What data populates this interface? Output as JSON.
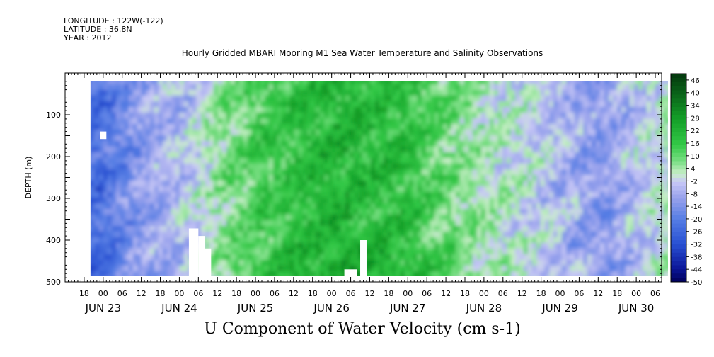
{
  "header": {
    "longitude": "LONGITUDE : 122W(-122)",
    "latitude": "LATITUDE : 36.8N",
    "year": "YEAR : 2012",
    "title": "Hourly Gridded MBARI Mooring M1 Sea Water Temperature and Salinity Observations"
  },
  "chart_data": {
    "type": "heatmap",
    "title": "U Component of Water Velocity (cm s-1)",
    "ylabel": "DEPTH (m)",
    "xlabel": "",
    "y_inverted": true,
    "ylim": [
      0,
      500
    ],
    "y_ticks": [
      100,
      200,
      300,
      400,
      500
    ],
    "x_hour_range": [
      12,
      200
    ],
    "x_hour_ticks": [
      {
        "h": 18,
        "label": "18"
      },
      {
        "h": 24,
        "label": "00"
      },
      {
        "h": 30,
        "label": "06"
      },
      {
        "h": 36,
        "label": "12"
      },
      {
        "h": 42,
        "label": "18"
      },
      {
        "h": 48,
        "label": "00"
      },
      {
        "h": 54,
        "label": "06"
      },
      {
        "h": 60,
        "label": "12"
      },
      {
        "h": 66,
        "label": "18"
      },
      {
        "h": 72,
        "label": "00"
      },
      {
        "h": 78,
        "label": "06"
      },
      {
        "h": 84,
        "label": "12"
      },
      {
        "h": 90,
        "label": "18"
      },
      {
        "h": 96,
        "label": "00"
      },
      {
        "h": 102,
        "label": "06"
      },
      {
        "h": 108,
        "label": "12"
      },
      {
        "h": 114,
        "label": "18"
      },
      {
        "h": 120,
        "label": "00"
      },
      {
        "h": 126,
        "label": "06"
      },
      {
        "h": 132,
        "label": "12"
      },
      {
        "h": 138,
        "label": "18"
      },
      {
        "h": 144,
        "label": "00"
      },
      {
        "h": 150,
        "label": "06"
      },
      {
        "h": 156,
        "label": "12"
      },
      {
        "h": 162,
        "label": "18"
      },
      {
        "h": 168,
        "label": "00"
      },
      {
        "h": 174,
        "label": "06"
      },
      {
        "h": 180,
        "label": "12"
      },
      {
        "h": 186,
        "label": "18"
      },
      {
        "h": 192,
        "label": "00"
      },
      {
        "h": 198,
        "label": "06"
      }
    ],
    "day_labels": [
      {
        "h": 24,
        "label": "JUN 23"
      },
      {
        "h": 48,
        "label": "JUN 24"
      },
      {
        "h": 72,
        "label": "JUN 25"
      },
      {
        "h": 96,
        "label": "JUN 26"
      },
      {
        "h": 120,
        "label": "JUN 27"
      },
      {
        "h": 144,
        "label": "JUN 28"
      },
      {
        "h": 168,
        "label": "JUN 29"
      },
      {
        "h": 192,
        "label": "JUN 30"
      }
    ],
    "data_hour_range": [
      20,
      202
    ],
    "depth_range": [
      20,
      500
    ],
    "colorbar": {
      "range": [
        -50,
        49
      ],
      "levels": [
        48,
        46,
        44,
        42,
        40,
        38,
        36,
        34,
        32,
        30,
        28,
        26,
        24,
        22,
        20,
        18,
        16,
        14,
        12,
        10,
        8,
        6,
        4,
        2,
        0,
        -2,
        -4,
        -6,
        -8,
        -10,
        -12,
        -14,
        -16,
        -18,
        -20,
        -22,
        -24,
        -26,
        -28,
        -30,
        -32,
        -34,
        -36,
        -38,
        -40,
        -42,
        -44,
        -46,
        -48,
        -50
      ],
      "labels": [
        "46",
        "40",
        "34",
        "28",
        "22",
        "16",
        "10",
        "4",
        "-2",
        "-8",
        "-14",
        "-20",
        "-26",
        "-32",
        "-38",
        "-44",
        "-50"
      ]
    },
    "u_velocity_profile": [
      {
        "h": 22,
        "u": -24
      },
      {
        "h": 32,
        "u": -14
      },
      {
        "h": 40,
        "u": -8
      },
      {
        "h": 50,
        "u": -4
      },
      {
        "h": 62,
        "u": 8
      },
      {
        "h": 72,
        "u": 14
      },
      {
        "h": 84,
        "u": 18
      },
      {
        "h": 96,
        "u": 22
      },
      {
        "h": 108,
        "u": 20
      },
      {
        "h": 120,
        "u": 18
      },
      {
        "h": 132,
        "u": 10
      },
      {
        "h": 144,
        "u": 4
      },
      {
        "h": 156,
        "u": 0
      },
      {
        "h": 168,
        "u": -6
      },
      {
        "h": 180,
        "u": -12
      },
      {
        "h": 192,
        "u": -4
      },
      {
        "h": 200,
        "u": 2
      }
    ],
    "missing_regions": [
      {
        "h0": 23,
        "h1": 25,
        "d0": 140,
        "d1": 158
      },
      {
        "h0": 51,
        "h1": 54,
        "d0": 372,
        "d1": 500
      },
      {
        "h0": 54,
        "h1": 56,
        "d0": 390,
        "d1": 500
      },
      {
        "h0": 56,
        "h1": 58,
        "d0": 420,
        "d1": 500
      },
      {
        "h0": 100,
        "h1": 104,
        "d0": 470,
        "d1": 500
      },
      {
        "h0": 105,
        "h1": 107,
        "d0": 400,
        "d1": 500
      }
    ]
  }
}
